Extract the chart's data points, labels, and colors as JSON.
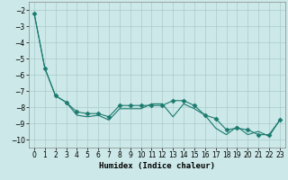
{
  "xlabel": "Humidex (Indice chaleur)",
  "x": [
    0,
    1,
    2,
    3,
    4,
    5,
    6,
    7,
    8,
    9,
    10,
    11,
    12,
    13,
    14,
    15,
    16,
    17,
    18,
    19,
    20,
    21,
    22,
    23
  ],
  "line1": [
    -2.2,
    -5.6,
    -7.3,
    -7.7,
    -8.3,
    -8.4,
    -8.4,
    -8.6,
    -7.9,
    -7.9,
    -7.9,
    -7.9,
    -7.9,
    -7.6,
    -7.6,
    -7.9,
    -8.5,
    -8.7,
    -9.4,
    -9.3,
    -9.4,
    -9.7,
    -9.7,
    -8.8
  ],
  "line2": [
    -2.2,
    -5.6,
    -7.3,
    -7.7,
    -8.5,
    -8.6,
    -8.5,
    -8.8,
    -8.1,
    -8.1,
    -8.1,
    -7.8,
    -7.8,
    -8.6,
    -7.8,
    -8.1,
    -8.5,
    -9.3,
    -9.7,
    -9.2,
    -9.7,
    -9.5,
    -9.8,
    -8.8
  ],
  "color": "#1a7a6e",
  "bg_color": "#cce8e8",
  "grid_color": "#aacccc",
  "ylim": [
    -10.5,
    -1.5
  ],
  "xlim": [
    -0.5,
    23.5
  ],
  "yticks": [
    -10,
    -9,
    -8,
    -7,
    -6,
    -5,
    -4,
    -3,
    -2
  ],
  "xticks": [
    0,
    1,
    2,
    3,
    4,
    5,
    6,
    7,
    8,
    9,
    10,
    11,
    12,
    13,
    14,
    15,
    16,
    17,
    18,
    19,
    20,
    21,
    22,
    23
  ],
  "marker": "D",
  "markersize": 2.5,
  "linewidth": 0.8,
  "xlabel_fontsize": 6.5,
  "tick_fontsize": 5.5
}
